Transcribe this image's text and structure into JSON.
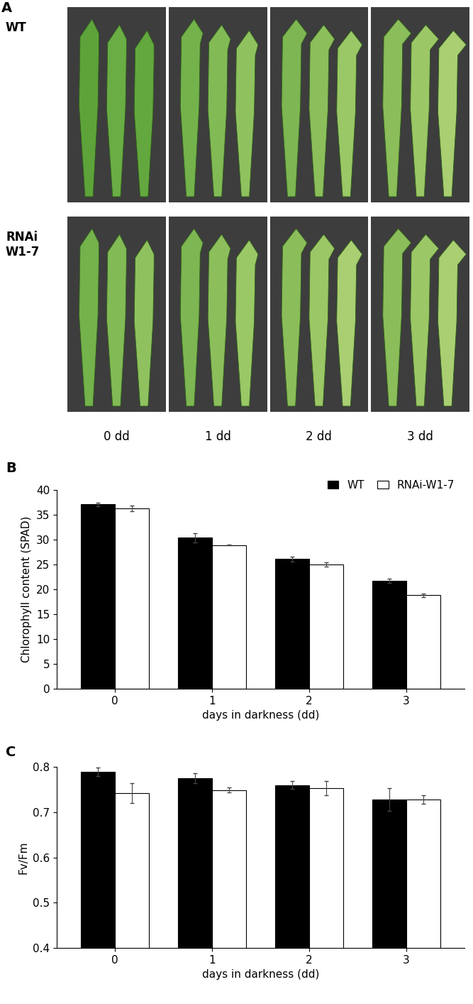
{
  "chart_data": [
    {
      "type": "image",
      "panel": "A",
      "rows": [
        "WT",
        "RNAi\nW1-7"
      ],
      "columns": [
        "0 dd",
        "1 dd",
        "2 dd",
        "3 dd"
      ]
    },
    {
      "type": "bar",
      "panel": "B",
      "categories": [
        "0",
        "1",
        "2",
        "3"
      ],
      "x_label": "days in darkness (dd)",
      "y_label": "Chlorophyll content (SPAD)",
      "ylim": [
        0,
        40
      ],
      "yticks": [
        0,
        5,
        10,
        15,
        20,
        25,
        30,
        35,
        40
      ],
      "legend": "upper right",
      "series": [
        {
          "name": "WT",
          "color": "#000000",
          "values": [
            37.1,
            30.4,
            26.1,
            21.7
          ],
          "errors": [
            0.4,
            0.9,
            0.5,
            0.4
          ]
        },
        {
          "name": "RNAi-W1-7",
          "color": "#ffffff",
          "values": [
            36.3,
            28.9,
            25.0,
            18.8
          ],
          "errors": [
            0.6,
            0.1,
            0.4,
            0.3
          ]
        }
      ]
    },
    {
      "type": "bar",
      "panel": "C",
      "categories": [
        "0",
        "1",
        "2",
        "3"
      ],
      "x_label": "days in darkness (dd)",
      "y_label": "Fv/Fm",
      "ylim": [
        0.4,
        0.8
      ],
      "yticks": [
        0.4,
        0.5,
        0.6,
        0.7,
        0.8
      ],
      "series": [
        {
          "name": "WT",
          "color": "#000000",
          "values": [
            0.789,
            0.775,
            0.76,
            0.728
          ],
          "errors": [
            0.009,
            0.011,
            0.008,
            0.025
          ]
        },
        {
          "name": "RNAi-W1-7",
          "color": "#ffffff",
          "values": [
            0.742,
            0.749,
            0.753,
            0.728
          ],
          "errors": [
            0.022,
            0.006,
            0.016,
            0.01
          ]
        }
      ]
    }
  ]
}
